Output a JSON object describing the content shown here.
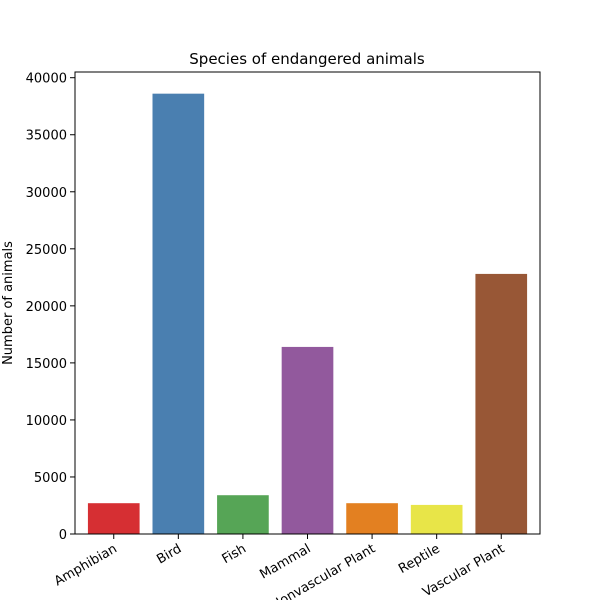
{
  "chart_data": {
    "type": "bar",
    "title": "Species of endangered animals",
    "xlabel": "",
    "ylabel": "Number of animals",
    "categories": [
      "Amphibian",
      "Bird",
      "Fish",
      "Mammal",
      "Nonvascular Plant",
      "Reptile",
      "Vascular Plant"
    ],
    "values": [
      2700,
      38600,
      3400,
      16400,
      2700,
      2550,
      22800
    ],
    "colors": [
      "#d62f33",
      "#4a7fb0",
      "#56a556",
      "#92599d",
      "#e38021",
      "#e8e548",
      "#985736"
    ],
    "ylim": [
      0,
      40500
    ],
    "yticks": [
      0,
      5000,
      10000,
      15000,
      20000,
      25000,
      30000,
      35000,
      40000
    ],
    "grid": false,
    "legend": false
  }
}
